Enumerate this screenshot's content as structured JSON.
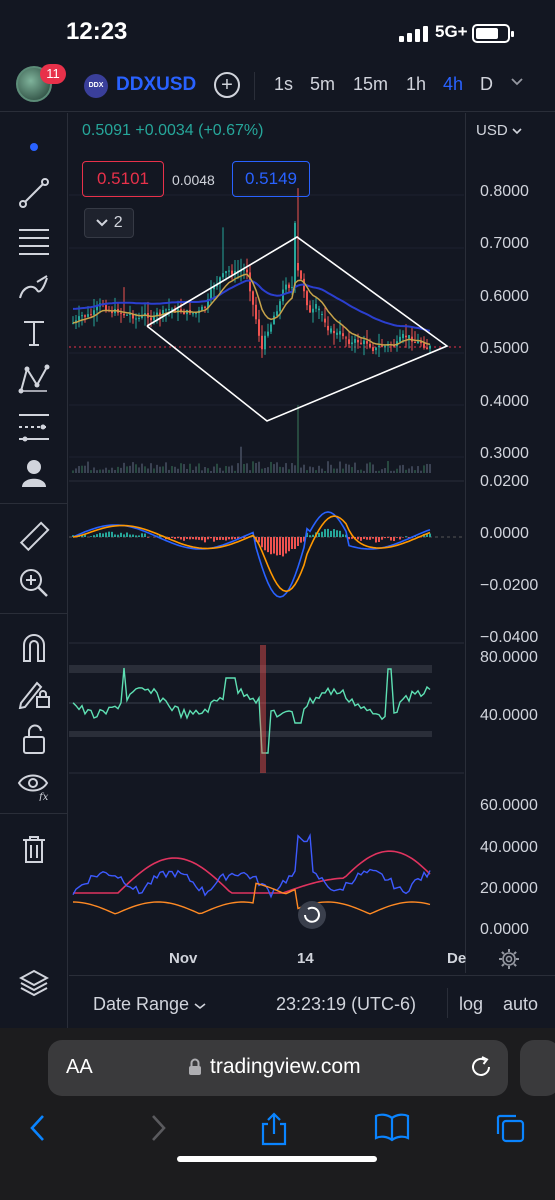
{
  "status": {
    "time": "12:23",
    "network": "5G+"
  },
  "toolbar": {
    "notifications": "11",
    "symbol_logo": "DDX",
    "symbol": "DDXUSD",
    "add_symbol": "+",
    "timeframes": [
      "1s",
      "5m",
      "15m",
      "1h",
      "4h",
      "D"
    ],
    "active_timeframe": "4h"
  },
  "left_tools": [
    "cursor-dot",
    "trend-line",
    "fib-retracement",
    "brush",
    "text",
    "pattern",
    "prediction",
    "avatar-person",
    "ruler",
    "zoom-in",
    "magnet",
    "lock-drawing",
    "lock",
    "eye-fx",
    "trash",
    "layers"
  ],
  "chart": {
    "ohlc_summary": "0.5091 +0.0034 (+0.67%)",
    "bid": "0.5101",
    "spread": "0.0048",
    "ask": "0.5149",
    "indicators_toggle": "2",
    "currency": "USD",
    "price_ticks": [
      "0.8000",
      "0.7000",
      "0.6000",
      "0.5000",
      "0.4000",
      "0.3000"
    ],
    "macd_ticks": [
      "0.0200",
      "0.0000",
      "−0.0200",
      "−0.0400"
    ],
    "rsi_ticks": [
      "80.0000",
      "40.0000"
    ],
    "dmi_ticks": [
      "60.0000",
      "40.0000",
      "20.0000",
      "0.0000"
    ],
    "time_labels": [
      "Nov",
      "14",
      "De"
    ],
    "colors": {
      "up": "#26a69a",
      "down": "#ef5350",
      "accent": "#2962ff",
      "pattern": "#ffffff"
    }
  },
  "bottom_bar": {
    "date_range": "Date Range",
    "clock": "23:23:19 (UTC-6)",
    "log": "log",
    "auto": "auto"
  },
  "browser": {
    "text_size": "AA",
    "url": "tradingview.com"
  }
}
